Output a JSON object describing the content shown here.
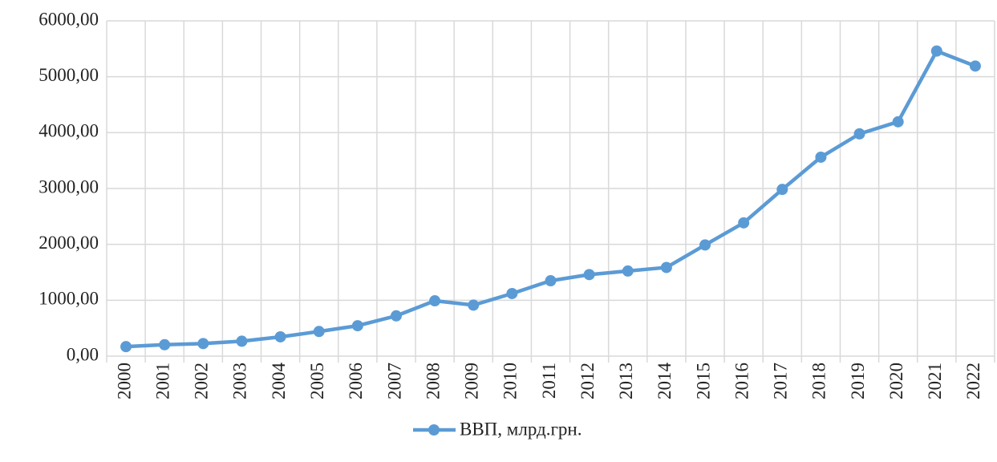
{
  "chart_data": {
    "type": "line",
    "categories": [
      "2000",
      "2001",
      "2002",
      "2003",
      "2004",
      "2005",
      "2006",
      "2007",
      "2008",
      "2009",
      "2010",
      "2011",
      "2012",
      "2013",
      "2014",
      "2015",
      "2016",
      "2017",
      "2018",
      "2019",
      "2020",
      "2021",
      "2022"
    ],
    "series": [
      {
        "name": "ВВП, млрд.грн.",
        "color": "#5b9bd5",
        "values": [
          170,
          204,
          225,
          267,
          345,
          441,
          544,
          721,
          990,
          913,
          1120,
          1349,
          1459,
          1523,
          1587,
          1989,
          2385,
          2983,
          3560,
          3978,
          4194,
          5460,
          5191
        ]
      }
    ],
    "ylim": [
      0,
      6000
    ],
    "yticks": [
      {
        "value": 0,
        "label": "0,00"
      },
      {
        "value": 1000,
        "label": "1000,00"
      },
      {
        "value": 2000,
        "label": "2000,00"
      },
      {
        "value": 3000,
        "label": "3000,00"
      },
      {
        "value": 4000,
        "label": "4000,00"
      },
      {
        "value": 5000,
        "label": "5000,00"
      },
      {
        "value": 6000,
        "label": "6000,00"
      }
    ],
    "grid": true,
    "legend": "bottom"
  }
}
